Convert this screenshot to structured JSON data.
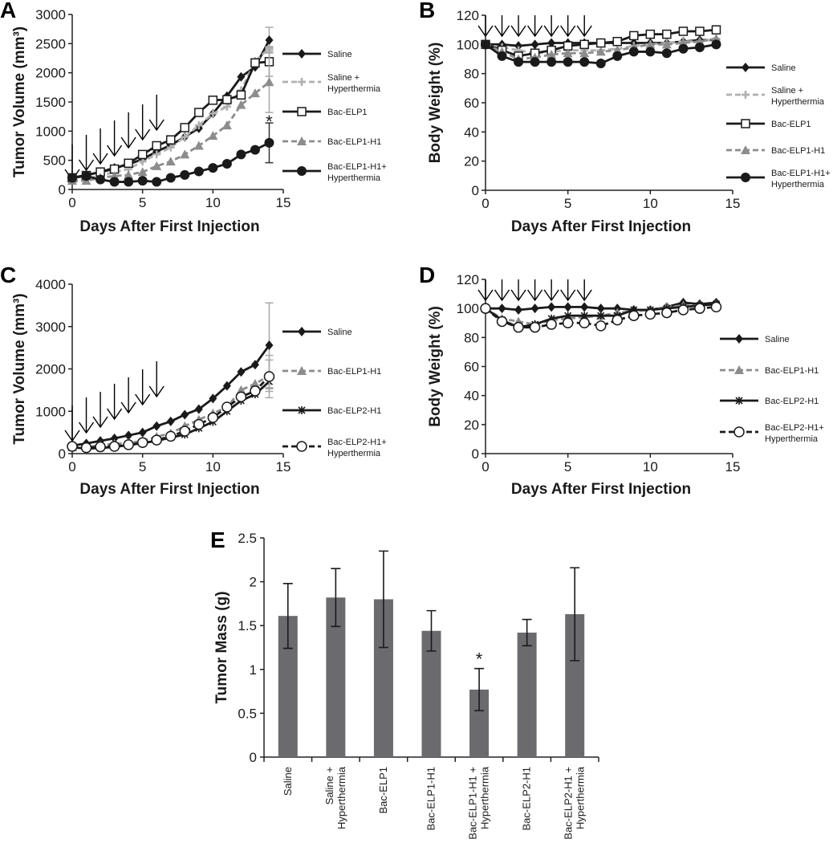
{
  "chart_data": [
    {
      "panel": "A",
      "type": "line",
      "xlabel": "Days After First Injection",
      "ylabel": "Tumor Volume (mm³)",
      "xlim": [
        0,
        15
      ],
      "xticks": [
        "0",
        "5",
        "10",
        "15"
      ],
      "ylim": [
        0,
        3000
      ],
      "yticks": [
        "0",
        "500",
        "1000",
        "1500",
        "2000",
        "2500",
        "3000"
      ],
      "injection_days": [
        0,
        1,
        2,
        3,
        4,
        5,
        6
      ],
      "x": [
        0,
        1,
        2,
        3,
        4,
        5,
        6,
        7,
        8,
        9,
        10,
        11,
        12,
        13,
        14
      ],
      "series": [
        {
          "name": "Saline",
          "label_lines": [
            "Saline"
          ],
          "marker": "diamond",
          "color": "#1a1a1a",
          "dashed": false,
          "values": [
            200,
            250,
            300,
            370,
            430,
            520,
            650,
            760,
            900,
            1050,
            1300,
            1600,
            1930,
            2100,
            2560
          ],
          "error_last": 220
        },
        {
          "name": "Saline + Hyperthermia",
          "label_lines": [
            "Saline +",
            "Hyperthermia"
          ],
          "marker": "plus",
          "color": "#b0b0b0",
          "dashed": true,
          "values": [
            150,
            180,
            230,
            300,
            350,
            480,
            600,
            720,
            900,
            1100,
            1300,
            1420,
            1700,
            2200,
            2420
          ],
          "error_last": 30
        },
        {
          "name": "Bac-ELP1",
          "label_lines": [
            "Bac-ELP1"
          ],
          "marker": "square-open",
          "color": "#1a1a1a",
          "dashed": false,
          "values": [
            200,
            240,
            300,
            350,
            450,
            600,
            750,
            850,
            1060,
            1320,
            1530,
            1540,
            1620,
            2170,
            2190
          ],
          "error_last": 250
        },
        {
          "name": "Bac-ELP1-H1",
          "label_lines": [
            "Bac-ELP1-H1"
          ],
          "marker": "triangle",
          "color": "#8c8c8c",
          "dashed": true,
          "values": [
            150,
            150,
            200,
            230,
            250,
            300,
            400,
            480,
            600,
            750,
            920,
            1100,
            1450,
            1650,
            1840
          ],
          "error_last": 520
        },
        {
          "name": "Bac-ELP1-H1+ Hyperthermia",
          "label_lines": [
            "Bac-ELP1-H1+",
            "Hyperthermia"
          ],
          "marker": "circle",
          "color": "#1a1a1a",
          "dashed": false,
          "values": [
            200,
            230,
            170,
            130,
            130,
            150,
            130,
            200,
            250,
            310,
            370,
            440,
            600,
            680,
            800
          ],
          "error_last": 340
        }
      ],
      "annotations": [
        {
          "text": "*",
          "x": 14,
          "y": 1200
        }
      ]
    },
    {
      "panel": "B",
      "type": "line",
      "xlabel": "Days After First Injection",
      "ylabel": "Body Weight (%)",
      "xlim": [
        0,
        15
      ],
      "xticks": [
        "0",
        "5",
        "10",
        "15"
      ],
      "ylim": [
        0,
        120
      ],
      "yticks": [
        "0",
        "20",
        "40",
        "60",
        "80",
        "100",
        "120"
      ],
      "injection_days": [
        0,
        1,
        2,
        3,
        4,
        5,
        6
      ],
      "x": [
        0,
        1,
        2,
        3,
        4,
        5,
        6,
        7,
        8,
        9,
        10,
        11,
        12,
        13,
        14
      ],
      "series": [
        {
          "name": "Saline",
          "label_lines": [
            "Saline"
          ],
          "marker": "diamond",
          "color": "#1a1a1a",
          "dashed": false,
          "values": [
            100,
            100,
            99,
            100,
            101,
            101,
            101,
            101,
            101,
            101,
            101,
            101,
            102,
            103,
            103
          ]
        },
        {
          "name": "Saline + Hyperthermia",
          "label_lines": [
            "Saline +",
            "Hyperthermia"
          ],
          "marker": "plus",
          "color": "#b0b0b0",
          "dashed": true,
          "values": [
            100,
            98,
            96,
            94,
            95,
            96,
            96,
            96,
            97,
            99,
            100,
            101,
            102,
            102,
            104
          ]
        },
        {
          "name": "Bac-ELP1",
          "label_lines": [
            "Bac-ELP1"
          ],
          "marker": "square-open",
          "color": "#1a1a1a",
          "dashed": false,
          "values": [
            100,
            96,
            92,
            94,
            96,
            99,
            100,
            101,
            102,
            106,
            107,
            107,
            109,
            109,
            110
          ]
        },
        {
          "name": "Bac-ELP1-H1",
          "label_lines": [
            "Bac-ELP1-H1"
          ],
          "marker": "triangle",
          "color": "#8c8c8c",
          "dashed": true,
          "values": [
            100,
            95,
            90,
            91,
            93,
            94,
            94,
            95,
            96,
            98,
            100,
            100,
            101,
            102,
            104
          ]
        },
        {
          "name": "Bac-ELP1-H1+ Hyperthermia",
          "label_lines": [
            "Bac-ELP1-H1+",
            "Hyperthermia"
          ],
          "marker": "circle",
          "color": "#1a1a1a",
          "dashed": false,
          "values": [
            100,
            92,
            88,
            88,
            88,
            88,
            88,
            87,
            92,
            95,
            95,
            94,
            97,
            98,
            100
          ]
        }
      ],
      "annotations": []
    },
    {
      "panel": "C",
      "type": "line",
      "xlabel": "Days After First Injection",
      "ylabel": "Tumor Volume (mm³)",
      "xlim": [
        0,
        15
      ],
      "xticks": [
        "0",
        "5",
        "10",
        "15"
      ],
      "ylim": [
        0,
        4000
      ],
      "yticks": [
        "0",
        "1000",
        "2000",
        "3000",
        "4000"
      ],
      "injection_days": [
        0,
        1,
        2,
        3,
        4,
        5,
        6
      ],
      "x": [
        0,
        1,
        2,
        3,
        4,
        5,
        6,
        7,
        8,
        9,
        10,
        11,
        12,
        13,
        14
      ],
      "series": [
        {
          "name": "Saline",
          "label_lines": [
            "Saline"
          ],
          "marker": "diamond",
          "color": "#1a1a1a",
          "dashed": false,
          "values": [
            190,
            240,
            300,
            360,
            430,
            500,
            650,
            760,
            920,
            1050,
            1300,
            1600,
            1930,
            2100,
            2560
          ],
          "error_last": 1000
        },
        {
          "name": "Bac-ELP1-H1",
          "label_lines": [
            "Bac-ELP1-H1"
          ],
          "marker": "triangle",
          "color": "#8c8c8c",
          "dashed": true,
          "values": [
            150,
            150,
            200,
            230,
            250,
            300,
            400,
            480,
            650,
            800,
            950,
            1100,
            1500,
            1650,
            1840
          ],
          "error_last": 370
        },
        {
          "name": "Bac-ELP2-H1",
          "label_lines": [
            "Bac-ELP2-H1"
          ],
          "marker": "star",
          "color": "#1a1a1a",
          "dashed": false,
          "values": [
            150,
            120,
            130,
            160,
            200,
            250,
            300,
            380,
            450,
            600,
            750,
            1000,
            1250,
            1400,
            1700
          ],
          "error_last": 170
        },
        {
          "name": "Bac-ELP2-H1+ Hyperthermia",
          "label_lines": [
            "Bac-ELP2-H1+",
            "Hyperthermia"
          ],
          "marker": "circle-open",
          "color": "#1a1a1a",
          "dashed": true,
          "values": [
            170,
            140,
            160,
            170,
            210,
            260,
            320,
            410,
            530,
            690,
            850,
            1100,
            1340,
            1480,
            1820
          ],
          "error_last": 500
        }
      ],
      "annotations": []
    },
    {
      "panel": "D",
      "type": "line",
      "xlabel": "Days After First Injection",
      "ylabel": "Body Weight (%)",
      "xlim": [
        0,
        15
      ],
      "xticks": [
        "0",
        "5",
        "10",
        "15"
      ],
      "ylim": [
        0,
        120
      ],
      "yticks": [
        "0",
        "20",
        "40",
        "60",
        "80",
        "100",
        "120"
      ],
      "injection_days": [
        0,
        1,
        2,
        3,
        4,
        5,
        6
      ],
      "x": [
        0,
        1,
        2,
        3,
        4,
        5,
        6,
        7,
        8,
        9,
        10,
        11,
        12,
        13,
        14
      ],
      "series": [
        {
          "name": "Saline",
          "label_lines": [
            "Saline"
          ],
          "marker": "diamond",
          "color": "#1a1a1a",
          "dashed": false,
          "values": [
            100,
            100,
            99,
            100,
            101,
            101,
            101,
            100,
            100,
            99,
            99,
            101,
            104,
            103,
            104
          ]
        },
        {
          "name": "Bac-ELP1-H1",
          "label_lines": [
            "Bac-ELP1-H1"
          ],
          "marker": "triangle",
          "color": "#8c8c8c",
          "dashed": true,
          "values": [
            100,
            93,
            91,
            89,
            92,
            93,
            94,
            95,
            97,
            98,
            99,
            101,
            102,
            102,
            103
          ]
        },
        {
          "name": "Bac-ELP2-H1",
          "label_lines": [
            "Bac-ELP2-H1"
          ],
          "marker": "star",
          "color": "#1a1a1a",
          "dashed": false,
          "values": [
            100,
            92,
            87,
            89,
            93,
            95,
            95,
            95,
            95,
            99,
            99,
            100,
            101,
            102,
            103
          ]
        },
        {
          "name": "Bac-ELP2-H1+ Hyperthermia",
          "label_lines": [
            "Bac-ELP2-H1+",
            "Hyperthermia"
          ],
          "marker": "circle-open",
          "color": "#1a1a1a",
          "dashed": true,
          "values": [
            100,
            91,
            87,
            87,
            89,
            90,
            90,
            88,
            92,
            95,
            96,
            97,
            99,
            100,
            101
          ]
        }
      ],
      "annotations": []
    },
    {
      "panel": "E",
      "type": "bar",
      "xlabel": "",
      "ylabel": "Tumor Mass (g)",
      "ylim": [
        0,
        2.5
      ],
      "yticks": [
        "0",
        "0.5",
        "1",
        "1.5",
        "2",
        "2.5"
      ],
      "categories": [
        {
          "name": "Saline",
          "label_lines": [
            "Saline"
          ]
        },
        {
          "name": "Saline + Hyperthermia",
          "label_lines": [
            "Saline +",
            "Hyperthermia"
          ]
        },
        {
          "name": "Bac-ELP1",
          "label_lines": [
            "Bac-ELP1"
          ]
        },
        {
          "name": "Bac-ELP1-H1",
          "label_lines": [
            "Bac-ELP1-H1"
          ]
        },
        {
          "name": "Bac-ELP1-H1 + Hyperthermia",
          "label_lines": [
            "Bac-ELP1-H1 +",
            "Hyperthermia"
          ]
        },
        {
          "name": "Bac-ELP2-H1",
          "label_lines": [
            "Bac-ELP2-H1"
          ]
        },
        {
          "name": "Bac-ELP2-H1 + Hyperthermia",
          "label_lines": [
            "Bac-ELP2-H1 +",
            "Hyperthermia"
          ]
        }
      ],
      "values": [
        1.61,
        1.82,
        1.8,
        1.44,
        0.77,
        1.42,
        1.63
      ],
      "errors": [
        0.37,
        0.33,
        0.55,
        0.23,
        0.24,
        0.15,
        0.53
      ],
      "bar_color": "#6b6b6e",
      "annotations": [
        {
          "text": "*",
          "category_index": 4
        }
      ]
    }
  ]
}
